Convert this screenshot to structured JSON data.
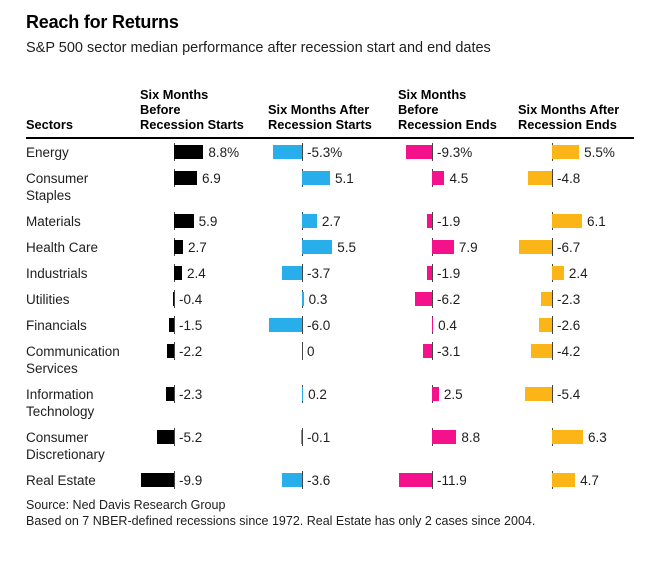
{
  "title": "Reach for Returns",
  "subtitle": "S&P 500 sector median performance after recession start and end dates",
  "columns": [
    {
      "label": "Sectors"
    },
    {
      "label": "Six Months\nBefore\nRecession Starts"
    },
    {
      "label": "Six Months After\nRecession Starts"
    },
    {
      "label": "Six Months\nBefore\nRecession Ends"
    },
    {
      "label": "Six Months After\nRecession Ends"
    }
  ],
  "chart_data": {
    "type": "bar",
    "orientation": "horizontal",
    "unit": "%",
    "zero_baseline": true,
    "gridlines": false,
    "legend_position": "column-headers",
    "categories": [
      "Energy",
      "Consumer Staples",
      "Materials",
      "Health Care",
      "Industrials",
      "Utilities",
      "Financials",
      "Communication Services",
      "Information Technology",
      "Consumer Discretionary",
      "Real Estate"
    ],
    "series": [
      {
        "name": "Six Months Before Recession Starts",
        "color": "#000000",
        "values": [
          8.8,
          6.9,
          5.9,
          2.7,
          2.4,
          -0.4,
          -1.5,
          -2.2,
          -2.3,
          -5.2,
          -9.9
        ],
        "labels": [
          "8.8%",
          "6.9",
          "5.9",
          "2.7",
          "2.4",
          "-0.4",
          "-1.5",
          "-2.2",
          "-2.3",
          "-5.2",
          "-9.9"
        ]
      },
      {
        "name": "Six Months After Recession Starts",
        "color": "#28afeb",
        "values": [
          -5.3,
          5.1,
          2.7,
          5.5,
          -3.7,
          0.3,
          -6.0,
          0,
          0.2,
          -0.1,
          -3.6
        ],
        "labels": [
          "-5.3%",
          "5.1",
          "2.7",
          "5.5",
          "-3.7",
          "0.3",
          "-6.0",
          "0",
          "0.2",
          "-0.1",
          "-3.6"
        ]
      },
      {
        "name": "Six Months Before Recession Ends",
        "color": "#f5108c",
        "values": [
          -9.3,
          4.5,
          -1.9,
          7.9,
          -1.9,
          -6.2,
          0.4,
          -3.1,
          2.5,
          8.8,
          -11.9
        ],
        "labels": [
          "-9.3%",
          "4.5",
          "-1.9",
          "7.9",
          "-1.9",
          "-6.2",
          "0.4",
          "-3.1",
          "2.5",
          "8.8",
          "-11.9"
        ]
      },
      {
        "name": "Six Months After Recession Ends",
        "color": "#fcb516",
        "values": [
          5.5,
          -4.8,
          6.1,
          -6.7,
          2.4,
          -2.3,
          -2.6,
          -4.2,
          -5.4,
          6.3,
          4.7
        ],
        "labels": [
          "5.5%",
          "-4.8",
          "6.1",
          "-6.7",
          "2.4",
          "-2.3",
          "-2.6",
          "-4.2",
          "-5.4",
          "6.3",
          "4.7"
        ]
      }
    ]
  },
  "source": "Source: Ned Davis Research Group",
  "note": "Based on 7 NBER-defined recessions since 1972. Real Estate has only 2 cases since 2004."
}
